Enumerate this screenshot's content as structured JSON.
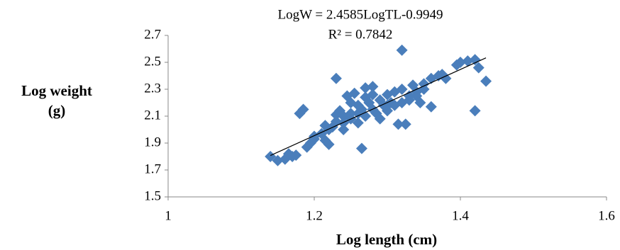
{
  "chart_data": {
    "type": "scatter",
    "annotations": [
      "LogW = 2.4585LogTL-0.9949",
      "R² = 0.7842"
    ],
    "ylabel": "Log weight (g)",
    "xlabel": "Log length (cm)",
    "color": "#4a7ebb",
    "x": [
      1.14,
      1.15,
      1.16,
      1.165,
      1.17,
      1.175,
      1.18,
      1.185,
      1.19,
      1.195,
      1.2,
      1.2,
      1.21,
      1.215,
      1.22,
      1.22,
      1.225,
      1.23,
      1.23,
      1.235,
      1.24,
      1.24,
      1.245,
      1.25,
      1.25,
      1.255,
      1.26,
      1.26,
      1.265,
      1.265,
      1.27,
      1.27,
      1.275,
      1.28,
      1.28,
      1.285,
      1.29,
      1.29,
      1.295,
      1.3,
      1.3,
      1.305,
      1.31,
      1.31,
      1.315,
      1.32,
      1.32,
      1.32,
      1.325,
      1.33,
      1.335,
      1.34,
      1.345,
      1.35,
      1.36,
      1.36,
      1.37,
      1.375,
      1.38,
      1.395,
      1.4,
      1.41,
      1.42,
      1.42,
      1.425,
      1.435,
      1.33,
      1.25,
      1.27,
      1.24,
      1.26,
      1.28,
      1.3,
      1.23,
      1.215,
      1.35,
      1.34
    ],
    "y": [
      1.8,
      1.77,
      1.78,
      1.82,
      1.8,
      1.81,
      2.12,
      2.15,
      1.87,
      1.9,
      1.93,
      1.95,
      1.97,
      1.92,
      1.89,
      2.0,
      2.02,
      2.38,
      2.06,
      2.14,
      2.05,
      2.1,
      2.25,
      2.12,
      2.08,
      2.27,
      2.18,
      2.05,
      1.86,
      2.15,
      2.31,
      2.1,
      2.2,
      2.32,
      2.15,
      2.12,
      2.22,
      2.08,
      2.18,
      2.26,
      2.14,
      2.2,
      2.28,
      2.18,
      2.04,
      2.59,
      2.3,
      2.2,
      2.04,
      2.25,
      2.33,
      2.28,
      2.2,
      2.3,
      2.17,
      2.38,
      2.4,
      2.41,
      2.38,
      2.48,
      2.5,
      2.51,
      2.14,
      2.52,
      2.46,
      2.36,
      2.22,
      2.2,
      2.24,
      2.0,
      2.12,
      2.26,
      2.18,
      2.11,
      2.03,
      2.34,
      2.25
    ],
    "trendline": {
      "x": [
        1.14,
        1.435
      ],
      "y": [
        1.8078,
        2.5331
      ]
    },
    "xlim": [
      1,
      1.6
    ],
    "xticks": [
      1,
      1.2,
      1.4,
      1.6
    ],
    "ylim": [
      1.5,
      2.7
    ],
    "yticks": [
      1.5,
      1.7,
      1.9,
      2.1,
      2.3,
      2.5,
      2.7
    ],
    "grid": false
  }
}
